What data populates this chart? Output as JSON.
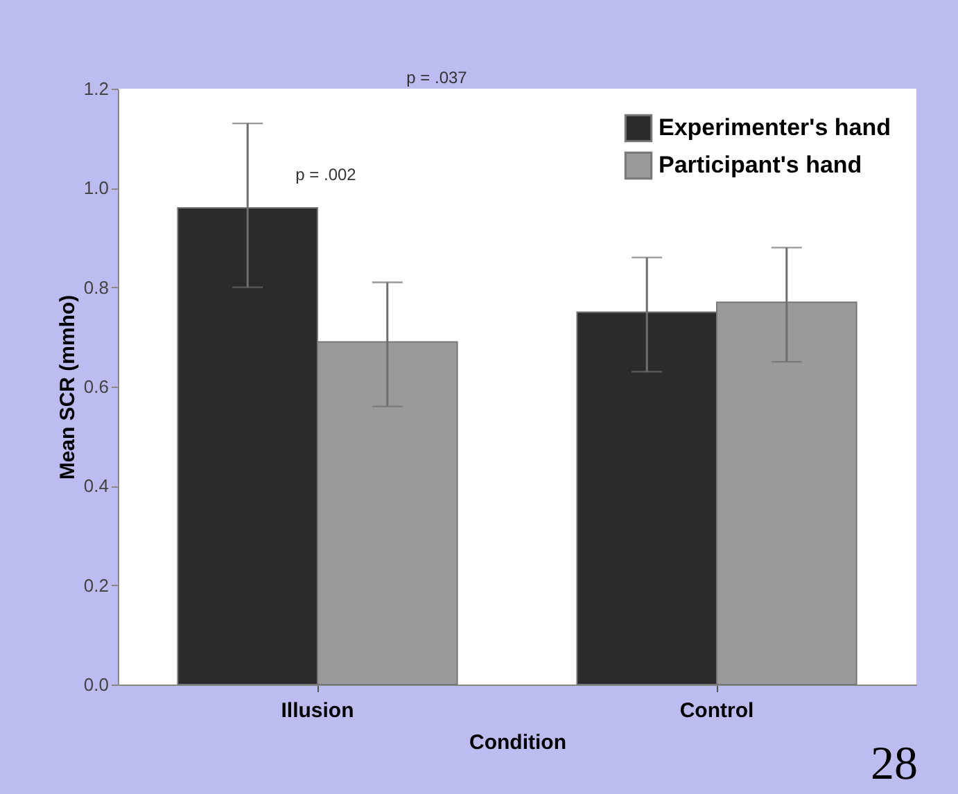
{
  "chart_data": {
    "type": "bar",
    "categories": [
      "Illusion",
      "Control"
    ],
    "xlabel": "Condition",
    "ylabel": "Mean SCR (mmho)",
    "series": [
      {
        "name": "Experimenter's hand",
        "color": "#2b2b2b",
        "values": [
          0.96,
          0.75
        ],
        "errors": [
          [
            0.8,
            1.13
          ],
          [
            0.63,
            0.86
          ]
        ]
      },
      {
        "name": "Participant's hand",
        "color": "#9a9a9a",
        "values": [
          0.69,
          0.77
        ],
        "errors": [
          [
            0.56,
            0.81
          ],
          [
            0.65,
            0.88
          ]
        ]
      }
    ],
    "ylim": [
      0,
      1.2
    ],
    "yticks": [
      {
        "value": 0,
        "label": "0.0"
      },
      0.2,
      0.4,
      0.6,
      0.8,
      {
        "value": 1,
        "label": "1.0"
      },
      1.2
    ],
    "annotations": [
      "p = .037",
      "p = .002",
      "28"
    ],
    "grid": false,
    "legend": "top right"
  }
}
